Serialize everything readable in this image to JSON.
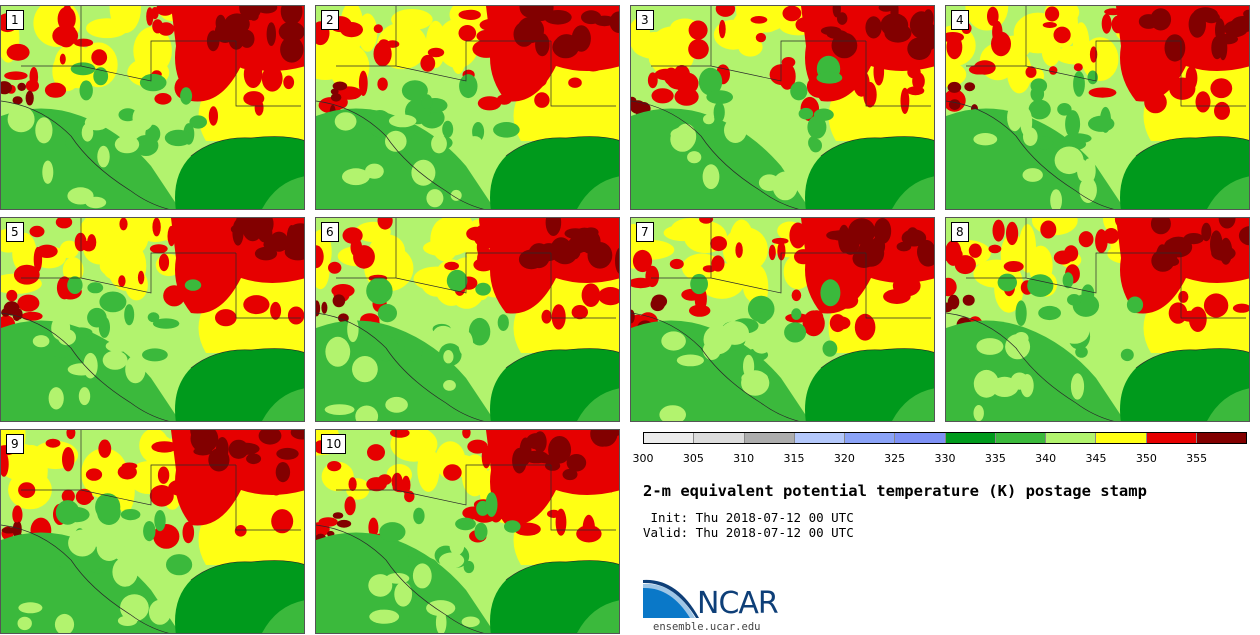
{
  "title": "2-m equivalent potential temperature (K) postage stamp",
  "init": " Init: Thu 2018-07-12 00 UTC",
  "valid": "Valid: Thu 2018-07-12 00 UTC",
  "members": [
    "1",
    "2",
    "3",
    "4",
    "5",
    "6",
    "7",
    "8",
    "9",
    "10"
  ],
  "colorbar": {
    "colors": [
      "#ececec",
      "#dcdcdc",
      "#adadad",
      "#b4c8fb",
      "#8ba3f7",
      "#7e91f5",
      "#009a1c",
      "#3bb93c",
      "#b2f36e",
      "#ffff14",
      "#e60000",
      "#820000"
    ],
    "ticks": [
      "300",
      "305",
      "310",
      "315",
      "320",
      "325",
      "330",
      "335",
      "340",
      "345",
      "350",
      "355"
    ]
  },
  "logo": {
    "name": "NCAR",
    "site": "ensemble.ucar.edu"
  },
  "map_colors": {
    "gulf": "#009a1c",
    "land_green": "#3bb93c",
    "light_green": "#b2f36e",
    "yellow": "#ffff14",
    "red": "#e60000",
    "dark_red": "#820000"
  }
}
